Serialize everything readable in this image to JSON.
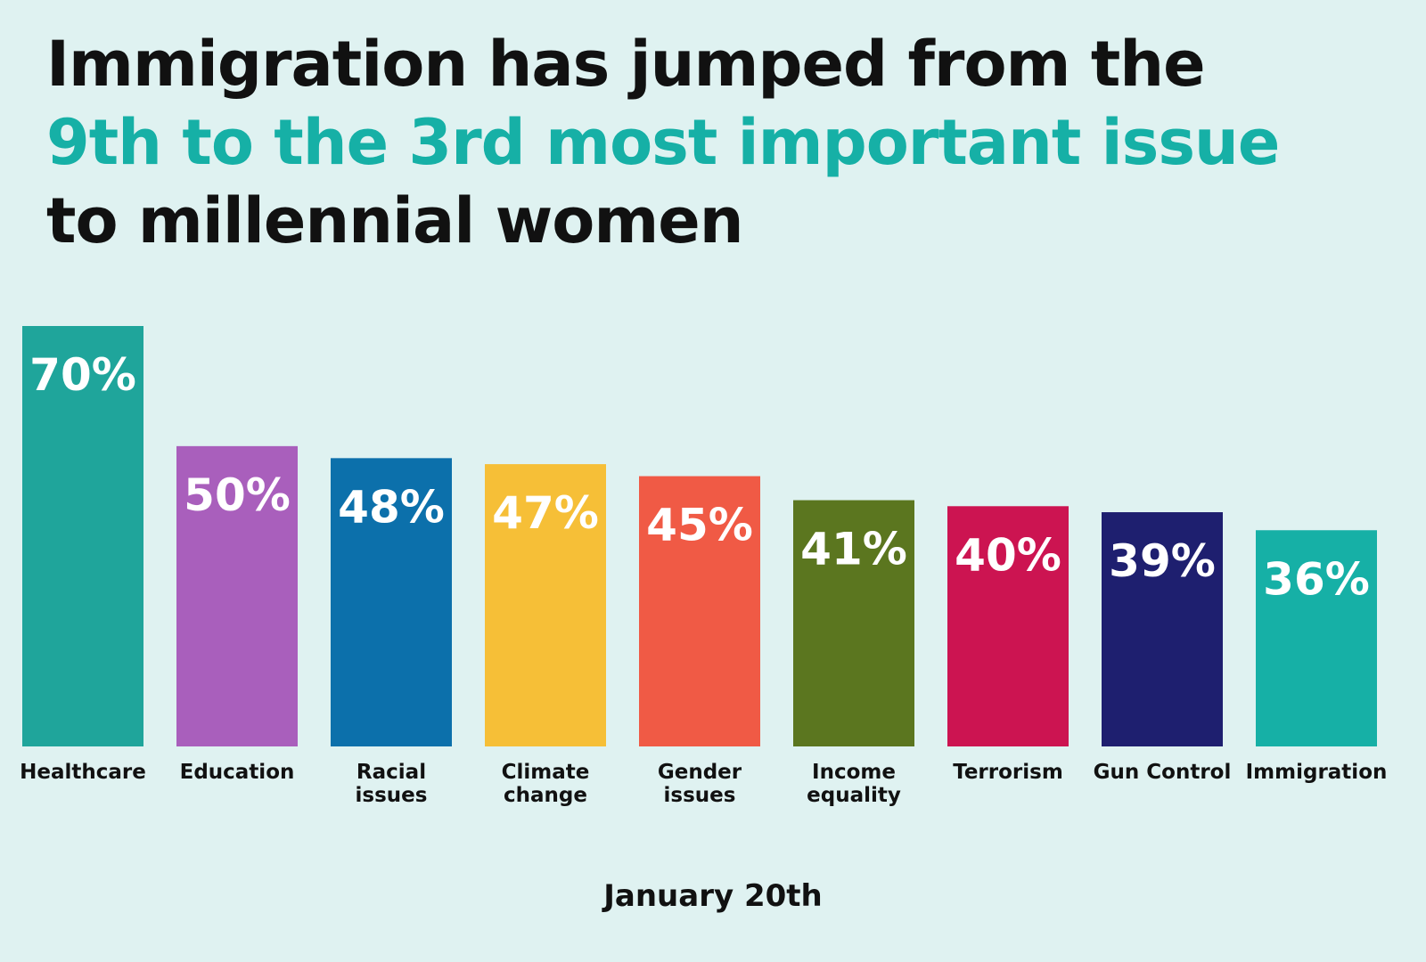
{
  "title": {
    "line1": "Immigration has jumped from the",
    "line2": "9th to the 3rd most important issue",
    "line3": "to millennial women"
  },
  "colors": {
    "background": "#dff2f1",
    "highlight": "#16b0a6",
    "text": "#111111"
  },
  "chart_data": {
    "type": "bar",
    "categories": [
      "Healthcare",
      "Education",
      "Racial issues",
      "Climate change",
      "Gender issues",
      "Income equality",
      "Terrorism",
      "Gun Control",
      "Immigration"
    ],
    "category_lines": [
      [
        "Healthcare"
      ],
      [
        "Education"
      ],
      [
        "Racial",
        "issues"
      ],
      [
        "Climate",
        "change"
      ],
      [
        "Gender",
        "issues"
      ],
      [
        "Income",
        "equality"
      ],
      [
        "Terrorism"
      ],
      [
        "Gun Control"
      ],
      [
        "Immigration"
      ]
    ],
    "values": [
      70,
      50,
      48,
      47,
      45,
      41,
      40,
      39,
      36
    ],
    "value_labels": [
      "70%",
      "50%",
      "48%",
      "47%",
      "45%",
      "41%",
      "40%",
      "39%",
      "36%"
    ],
    "bar_colors": [
      "#1fa59b",
      "#a95fbc",
      "#0c70ab",
      "#f6bf37",
      "#f05a45",
      "#5b761f",
      "#cc1451",
      "#1e1f6f",
      "#16b0a6"
    ],
    "xlabel": "January 20th",
    "ylabel": "",
    "ylim": [
      0,
      70
    ],
    "grid": false,
    "legend": "none"
  }
}
